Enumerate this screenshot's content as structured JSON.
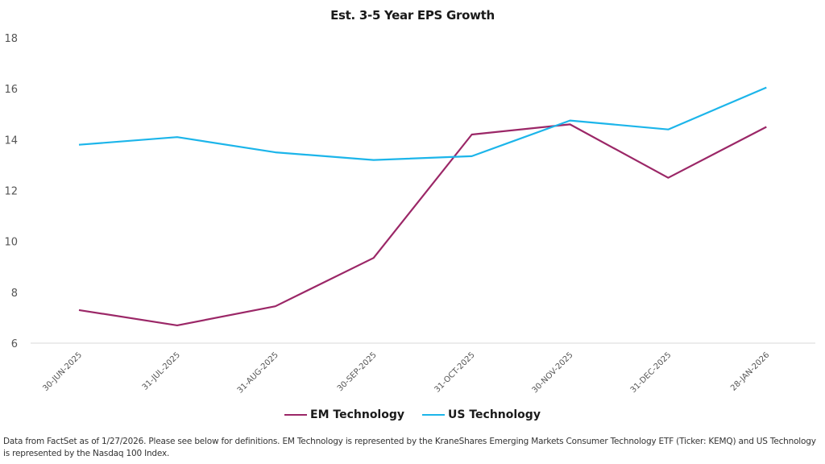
{
  "chart_data": {
    "type": "line",
    "title": "Est. 3-5 Year EPS Growth",
    "xlabel": "",
    "ylabel": "",
    "categories": [
      "30-JUN-2025",
      "31-JUL-2025",
      "31-AUG-2025",
      "30-SEP-2025",
      "31-OCT-2025",
      "30-NOV-2025",
      "31-DEC-2025",
      "28-JAN-2026"
    ],
    "ylim": [
      6,
      18
    ],
    "yticks": [
      6,
      8,
      10,
      12,
      14,
      16,
      18
    ],
    "grid": false,
    "legend_position": "bottom-center",
    "series": [
      {
        "name": "EM Technology",
        "color": "#9B2767",
        "values": [
          7.3,
          6.7,
          7.45,
          9.35,
          14.2,
          14.6,
          12.5,
          14.5
        ]
      },
      {
        "name": "US Technology",
        "color": "#1CB5EA",
        "values": [
          13.8,
          14.1,
          13.5,
          13.2,
          13.35,
          14.75,
          14.4,
          16.05
        ]
      }
    ]
  },
  "footnote": "Data from FactSet as of 1/27/2026. Please see below for definitions. EM Technology is represented by the KraneShares Emerging Markets Consumer Technology ETF (Ticker: KEMQ) and US Technology is represented by the Nasdaq 100 Index."
}
